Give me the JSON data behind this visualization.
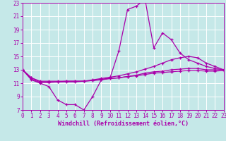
{
  "background_color": "#c5e8e8",
  "grid_color": "#ffffff",
  "line_color": "#aa00aa",
  "xlabel": "Windchill (Refroidissement éolien,°C)",
  "xmin": 0,
  "xmax": 23,
  "ymin": 7,
  "ymax": 23,
  "yticks": [
    7,
    9,
    11,
    13,
    15,
    17,
    19,
    21,
    23
  ],
  "xticks": [
    0,
    1,
    2,
    3,
    4,
    5,
    6,
    7,
    8,
    9,
    10,
    11,
    12,
    13,
    14,
    15,
    16,
    17,
    18,
    19,
    20,
    21,
    22,
    23
  ],
  "line1_x": [
    0,
    1,
    2,
    3,
    4,
    5,
    6,
    7,
    8,
    9,
    10,
    11,
    12,
    13,
    14,
    15,
    16,
    17,
    18,
    19,
    20,
    21,
    22,
    23
  ],
  "line1_y": [
    13.0,
    11.5,
    11.0,
    10.5,
    8.5,
    7.8,
    7.8,
    7.0,
    9.0,
    11.5,
    11.8,
    15.8,
    22.0,
    22.5,
    23.5,
    16.3,
    18.5,
    17.5,
    15.5,
    14.5,
    14.0,
    13.5,
    13.2,
    13.0
  ],
  "line2_x": [
    0,
    1,
    2,
    3,
    4,
    5,
    6,
    7,
    8,
    9,
    10,
    11,
    12,
    13,
    14,
    15,
    16,
    17,
    18,
    19,
    20,
    21,
    22,
    23
  ],
  "line2_y": [
    13.0,
    11.8,
    11.3,
    11.3,
    11.3,
    11.3,
    11.3,
    11.3,
    11.5,
    11.7,
    11.9,
    12.1,
    12.4,
    12.7,
    13.1,
    13.5,
    14.0,
    14.5,
    14.8,
    15.0,
    14.8,
    14.0,
    13.5,
    13.0
  ],
  "line3_x": [
    0,
    1,
    2,
    3,
    4,
    5,
    6,
    7,
    8,
    9,
    10,
    11,
    12,
    13,
    14,
    15,
    16,
    17,
    18,
    19,
    20,
    21,
    22,
    23
  ],
  "line3_y": [
    13.0,
    11.8,
    11.2,
    11.2,
    11.2,
    11.3,
    11.3,
    11.3,
    11.4,
    11.5,
    11.7,
    11.8,
    12.0,
    12.2,
    12.5,
    12.7,
    12.8,
    13.0,
    13.1,
    13.2,
    13.2,
    13.0,
    13.0,
    13.0
  ],
  "line4_x": [
    0,
    1,
    2,
    3,
    4,
    5,
    6,
    7,
    8,
    9,
    10,
    11,
    12,
    13,
    14,
    15,
    16,
    17,
    18,
    19,
    20,
    21,
    22,
    23
  ],
  "line4_y": [
    13.0,
    11.6,
    11.1,
    11.1,
    11.2,
    11.2,
    11.2,
    11.3,
    11.4,
    11.6,
    11.7,
    11.8,
    12.0,
    12.1,
    12.3,
    12.5,
    12.6,
    12.7,
    12.8,
    12.9,
    12.9,
    12.8,
    12.8,
    12.9
  ]
}
